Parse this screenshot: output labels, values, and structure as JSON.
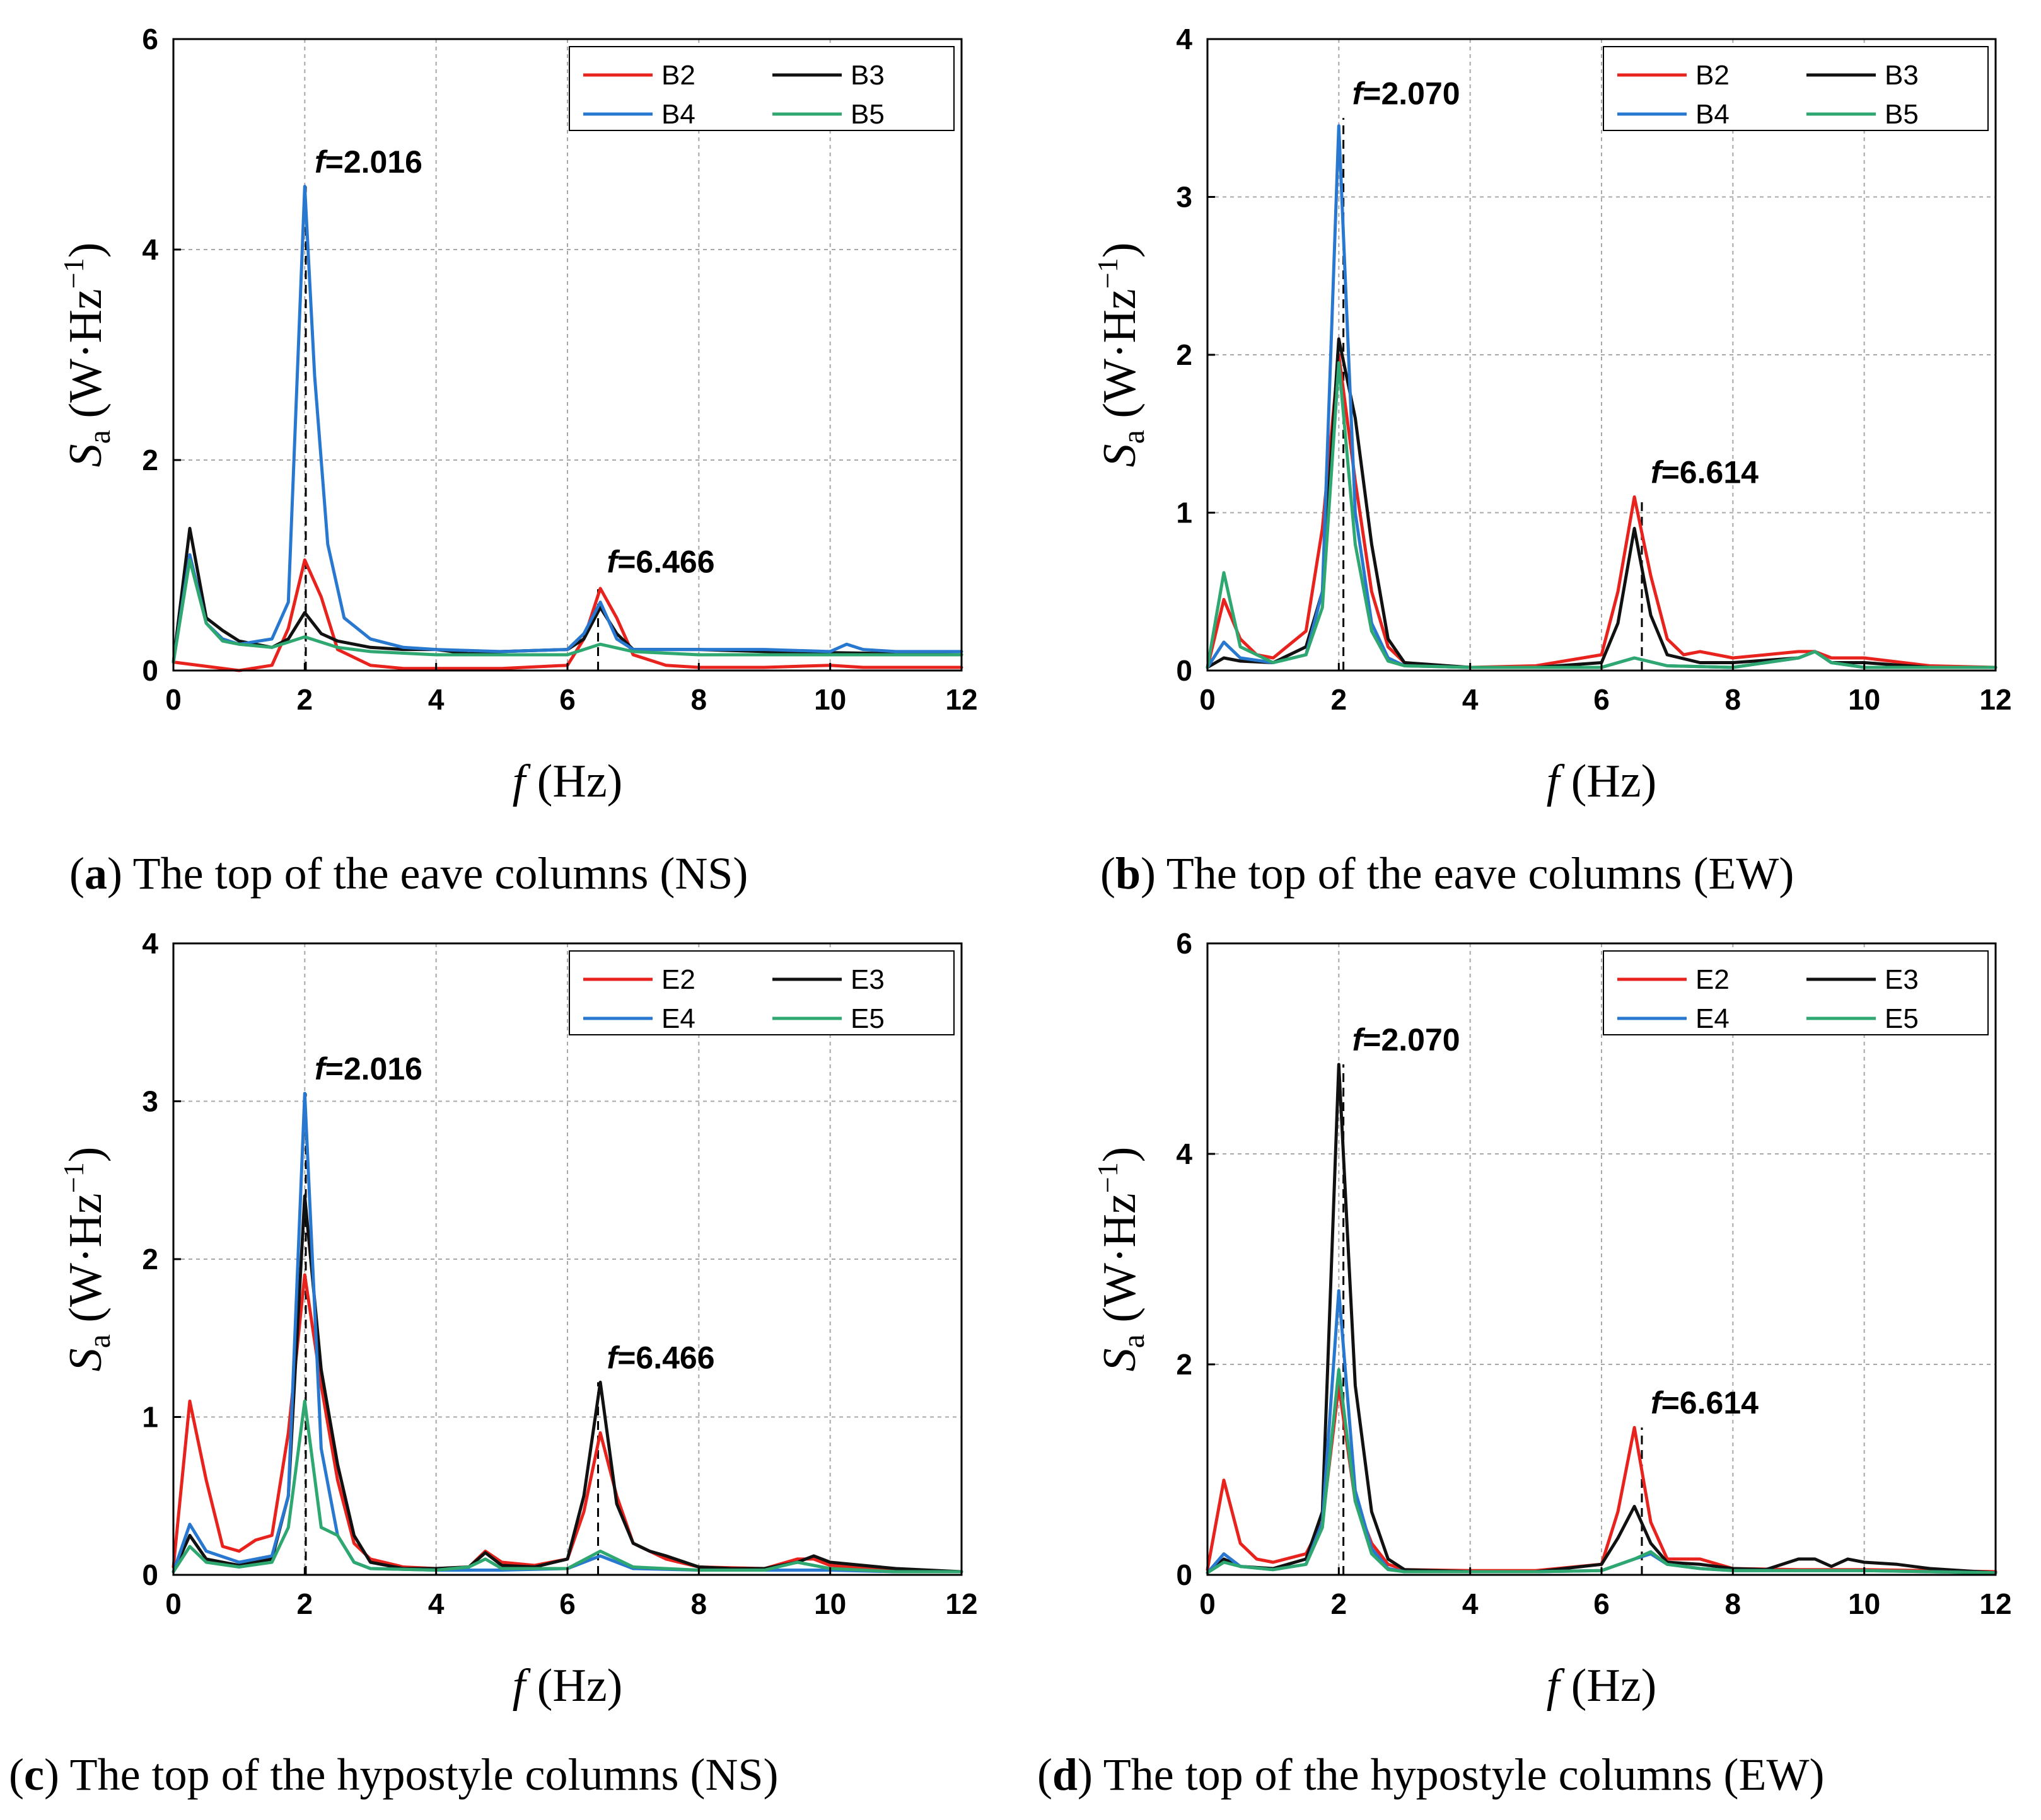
{
  "chart_data": [
    {
      "id": "a",
      "type": "line",
      "caption_letter": "a",
      "caption_text": ") The top of the eave columns (NS)",
      "xlabel": "(Hz)",
      "xlabel_symbol": "f",
      "ylabel": "S",
      "ylabel_sub": "a",
      "ylabel_unit": "(W·Hz",
      "ylabel_exp": "−1",
      "ylabel_close": ")",
      "xlim": [
        0,
        12
      ],
      "ylim": [
        0,
        6
      ],
      "xticks": [
        0,
        2,
        4,
        6,
        8,
        10,
        12
      ],
      "yticks": [
        0,
        2,
        4,
        6
      ],
      "grid": true,
      "legend_position": "top-right",
      "annotations": [
        {
          "x": 2.016,
          "peak": 4.6,
          "text": "=2.016"
        },
        {
          "x": 6.466,
          "peak": 0.8,
          "text": "=6.466"
        }
      ],
      "series": [
        {
          "name": "B2",
          "color": "#e8221c",
          "x": [
            0,
            1,
            1.5,
            1.75,
            2,
            2.25,
            2.5,
            3,
            3.5,
            4,
            5,
            6,
            6.25,
            6.5,
            6.75,
            7,
            7.5,
            8,
            9,
            10,
            10.5,
            11,
            12
          ],
          "y": [
            0.08,
            0.0,
            0.05,
            0.4,
            1.05,
            0.7,
            0.2,
            0.05,
            0.02,
            0.02,
            0.02,
            0.05,
            0.3,
            0.78,
            0.5,
            0.15,
            0.05,
            0.03,
            0.03,
            0.05,
            0.03,
            0.03,
            0.03
          ]
        },
        {
          "name": "B3",
          "color": "#111111",
          "x": [
            0,
            0.25,
            0.5,
            0.75,
            1,
            1.5,
            1.75,
            2,
            2.25,
            2.5,
            3,
            3.5,
            4,
            4.5,
            5,
            6,
            6.25,
            6.5,
            6.75,
            7,
            8,
            9,
            10,
            11,
            12
          ],
          "y": [
            0.08,
            1.35,
            0.5,
            0.38,
            0.28,
            0.22,
            0.3,
            0.55,
            0.35,
            0.28,
            0.22,
            0.2,
            0.2,
            0.16,
            0.18,
            0.2,
            0.3,
            0.6,
            0.35,
            0.2,
            0.2,
            0.18,
            0.17,
            0.16,
            0.15
          ]
        },
        {
          "name": "B4",
          "color": "#2878d0",
          "x": [
            0,
            0.25,
            0.5,
            0.75,
            1,
            1.5,
            1.75,
            2,
            2.15,
            2.35,
            2.6,
            3,
            3.5,
            4,
            5,
            6,
            6.25,
            6.5,
            6.75,
            7,
            8,
            9,
            10,
            10.25,
            10.5,
            11,
            12
          ],
          "y": [
            0.08,
            1.1,
            0.45,
            0.3,
            0.25,
            0.3,
            0.65,
            4.6,
            2.8,
            1.2,
            0.5,
            0.3,
            0.22,
            0.2,
            0.18,
            0.2,
            0.35,
            0.65,
            0.3,
            0.2,
            0.2,
            0.2,
            0.18,
            0.25,
            0.2,
            0.18,
            0.18
          ]
        },
        {
          "name": "B5",
          "color": "#2ea870",
          "x": [
            0,
            0.25,
            0.5,
            0.75,
            1,
            1.5,
            2,
            2.5,
            3,
            4,
            5,
            6,
            6.5,
            7,
            8,
            9,
            10,
            11,
            12
          ],
          "y": [
            0.08,
            1.05,
            0.45,
            0.28,
            0.25,
            0.22,
            0.32,
            0.22,
            0.18,
            0.15,
            0.15,
            0.15,
            0.25,
            0.18,
            0.15,
            0.15,
            0.15,
            0.15,
            0.15
          ]
        }
      ]
    },
    {
      "id": "b",
      "type": "line",
      "caption_letter": "b",
      "caption_text": ") The top of the eave columns (EW)",
      "xlabel": "(Hz)",
      "xlabel_symbol": "f",
      "ylabel": "S",
      "ylabel_sub": "a",
      "ylabel_unit": "(W·Hz",
      "ylabel_exp": "−1",
      "ylabel_close": ")",
      "xlim": [
        0,
        12
      ],
      "ylim": [
        0,
        4
      ],
      "xticks": [
        0,
        2,
        4,
        6,
        8,
        10,
        12
      ],
      "yticks": [
        0,
        1,
        2,
        3,
        4
      ],
      "grid": true,
      "legend_position": "top-right",
      "annotations": [
        {
          "x": 2.07,
          "peak": 3.5,
          "text": "=2.070"
        },
        {
          "x": 6.614,
          "peak": 1.1,
          "text": "=6.614"
        }
      ],
      "series": [
        {
          "name": "B2",
          "color": "#e8221c",
          "x": [
            0,
            0.25,
            0.5,
            0.75,
            1,
            1.5,
            1.75,
            2,
            2.25,
            2.5,
            2.75,
            3,
            3.5,
            4,
            5,
            6,
            6.25,
            6.5,
            6.75,
            7,
            7.25,
            7.5,
            8,
            8.5,
            9,
            9.25,
            9.5,
            10,
            11,
            12
          ],
          "y": [
            0.02,
            0.45,
            0.2,
            0.1,
            0.08,
            0.25,
            0.9,
            2.0,
            1.2,
            0.5,
            0.15,
            0.05,
            0.03,
            0.02,
            0.03,
            0.1,
            0.5,
            1.1,
            0.6,
            0.2,
            0.1,
            0.12,
            0.08,
            0.1,
            0.12,
            0.12,
            0.08,
            0.08,
            0.03,
            0.02
          ]
        },
        {
          "name": "B3",
          "color": "#111111",
          "x": [
            0,
            0.25,
            0.5,
            1,
            1.5,
            1.75,
            2,
            2.25,
            2.5,
            2.75,
            3,
            4,
            5,
            6,
            6.25,
            6.5,
            6.75,
            7,
            7.5,
            8,
            9,
            9.25,
            9.5,
            10,
            11,
            12
          ],
          "y": [
            0.02,
            0.08,
            0.06,
            0.05,
            0.15,
            0.5,
            2.1,
            1.6,
            0.8,
            0.2,
            0.05,
            0.02,
            0.02,
            0.05,
            0.3,
            0.9,
            0.35,
            0.1,
            0.05,
            0.05,
            0.08,
            0.12,
            0.05,
            0.05,
            0.02,
            0.02
          ]
        },
        {
          "name": "B4",
          "color": "#2878d0",
          "x": [
            0,
            0.25,
            0.5,
            1,
            1.5,
            1.75,
            2,
            2.25,
            2.5,
            2.75,
            3,
            4,
            5,
            6,
            6.5,
            7,
            8,
            9,
            9.25,
            9.5,
            10,
            11,
            12
          ],
          "y": [
            0.02,
            0.18,
            0.08,
            0.05,
            0.1,
            0.5,
            3.45,
            1.0,
            0.3,
            0.08,
            0.03,
            0.02,
            0.02,
            0.02,
            0.08,
            0.03,
            0.02,
            0.08,
            0.12,
            0.05,
            0.02,
            0.02,
            0.02
          ]
        },
        {
          "name": "B5",
          "color": "#2ea870",
          "x": [
            0,
            0.25,
            0.5,
            1,
            1.5,
            1.75,
            2,
            2.25,
            2.5,
            2.75,
            3,
            4,
            5,
            6,
            6.5,
            7,
            8,
            9,
            9.25,
            9.5,
            10,
            11,
            12
          ],
          "y": [
            0.02,
            0.62,
            0.15,
            0.05,
            0.1,
            0.4,
            1.95,
            0.8,
            0.25,
            0.06,
            0.03,
            0.02,
            0.02,
            0.02,
            0.08,
            0.03,
            0.02,
            0.08,
            0.12,
            0.05,
            0.02,
            0.02,
            0.02
          ]
        }
      ]
    },
    {
      "id": "c",
      "type": "line",
      "caption_letter": "c",
      "caption_text": ") The top of the hypostyle columns (NS)",
      "xlabel": "(Hz)",
      "xlabel_symbol": "f",
      "ylabel": "S",
      "ylabel_sub": "a",
      "ylabel_unit": "(W·Hz",
      "ylabel_exp": "−1",
      "ylabel_close": ")",
      "xlim": [
        0,
        12
      ],
      "ylim": [
        0,
        4
      ],
      "xticks": [
        0,
        2,
        4,
        6,
        8,
        10,
        12
      ],
      "yticks": [
        0,
        1,
        2,
        3,
        4
      ],
      "grid": true,
      "legend_position": "top-right",
      "annotations": [
        {
          "x": 2.016,
          "peak": 3.05,
          "text": "=2.016"
        },
        {
          "x": 6.466,
          "peak": 1.22,
          "text": "=6.466"
        }
      ],
      "series": [
        {
          "name": "E2",
          "color": "#e8221c",
          "x": [
            0,
            0.25,
            0.5,
            0.75,
            1,
            1.25,
            1.5,
            1.75,
            2,
            2.25,
            2.5,
            2.75,
            3,
            3.5,
            4,
            4.5,
            4.75,
            5,
            5.5,
            6,
            6.25,
            6.5,
            6.75,
            7,
            7.5,
            8,
            9,
            9.5,
            9.75,
            10,
            11,
            12
          ],
          "y": [
            0.05,
            1.1,
            0.6,
            0.18,
            0.15,
            0.22,
            0.25,
            0.9,
            1.9,
            1.2,
            0.6,
            0.2,
            0.1,
            0.05,
            0.04,
            0.05,
            0.15,
            0.08,
            0.06,
            0.1,
            0.4,
            0.9,
            0.5,
            0.2,
            0.1,
            0.05,
            0.04,
            0.1,
            0.1,
            0.06,
            0.03,
            0.02
          ]
        },
        {
          "name": "E3",
          "color": "#111111",
          "x": [
            0,
            0.25,
            0.5,
            1,
            1.5,
            1.75,
            2,
            2.25,
            2.5,
            2.75,
            3,
            3.5,
            4,
            4.5,
            4.75,
            5,
            5.5,
            6,
            6.25,
            6.5,
            6.75,
            7,
            7.25,
            7.5,
            8,
            8.5,
            9,
            9.5,
            9.75,
            10,
            11,
            12
          ],
          "y": [
            0.02,
            0.25,
            0.1,
            0.06,
            0.1,
            0.5,
            2.4,
            1.3,
            0.7,
            0.25,
            0.08,
            0.04,
            0.04,
            0.05,
            0.14,
            0.06,
            0.05,
            0.1,
            0.5,
            1.22,
            0.45,
            0.2,
            0.15,
            0.12,
            0.05,
            0.04,
            0.04,
            0.08,
            0.12,
            0.08,
            0.04,
            0.02
          ]
        },
        {
          "name": "E4",
          "color": "#2878d0",
          "x": [
            0,
            0.25,
            0.5,
            1,
            1.5,
            1.75,
            2,
            2.25,
            2.5,
            2.75,
            3,
            4,
            5,
            6,
            6.5,
            7,
            8,
            9,
            10,
            11,
            12
          ],
          "y": [
            0.02,
            0.32,
            0.15,
            0.08,
            0.12,
            0.5,
            3.05,
            0.8,
            0.25,
            0.08,
            0.04,
            0.03,
            0.03,
            0.04,
            0.12,
            0.04,
            0.03,
            0.03,
            0.03,
            0.02,
            0.02
          ]
        },
        {
          "name": "E5",
          "color": "#2ea870",
          "x": [
            0,
            0.25,
            0.5,
            1,
            1.5,
            1.75,
            2,
            2.25,
            2.5,
            2.75,
            3,
            4,
            4.5,
            4.75,
            5,
            6,
            6.5,
            7,
            8,
            9,
            9.5,
            10,
            11,
            12
          ],
          "y": [
            0.02,
            0.18,
            0.08,
            0.05,
            0.08,
            0.3,
            1.1,
            0.3,
            0.25,
            0.08,
            0.04,
            0.03,
            0.05,
            0.1,
            0.04,
            0.04,
            0.15,
            0.05,
            0.03,
            0.03,
            0.08,
            0.04,
            0.02,
            0.02
          ]
        }
      ]
    },
    {
      "id": "d",
      "type": "line",
      "caption_letter": "d",
      "caption_text": ") The top of the hypostyle columns (EW)",
      "xlabel": "(Hz)",
      "xlabel_symbol": "f",
      "ylabel": "S",
      "ylabel_sub": "a",
      "ylabel_unit": "(W·Hz",
      "ylabel_exp": "−1",
      "ylabel_close": ")",
      "xlim": [
        0,
        12
      ],
      "ylim": [
        0,
        6
      ],
      "xticks": [
        0,
        2,
        4,
        6,
        8,
        10,
        12
      ],
      "yticks": [
        0,
        2,
        4,
        6
      ],
      "grid": true,
      "legend_position": "top-right",
      "annotations": [
        {
          "x": 2.07,
          "peak": 4.85,
          "text": "=2.070"
        },
        {
          "x": 6.614,
          "peak": 1.4,
          "text": "=6.614"
        }
      ],
      "series": [
        {
          "name": "E2",
          "color": "#e8221c",
          "x": [
            0,
            0.25,
            0.5,
            0.75,
            1,
            1.5,
            1.75,
            2,
            2.25,
            2.5,
            2.75,
            3,
            4,
            5,
            6,
            6.25,
            6.5,
            6.75,
            7,
            7.5,
            8,
            9,
            10,
            11,
            12
          ],
          "y": [
            0.05,
            0.9,
            0.3,
            0.15,
            0.12,
            0.2,
            0.5,
            1.8,
            0.7,
            0.3,
            0.1,
            0.05,
            0.04,
            0.04,
            0.1,
            0.6,
            1.4,
            0.5,
            0.15,
            0.15,
            0.06,
            0.05,
            0.05,
            0.04,
            0.03
          ]
        },
        {
          "name": "E3",
          "color": "#111111",
          "x": [
            0,
            0.25,
            0.5,
            1,
            1.5,
            1.75,
            2,
            2.25,
            2.5,
            2.75,
            3,
            4,
            5,
            6,
            6.25,
            6.5,
            6.75,
            7,
            7.5,
            8,
            8.5,
            9,
            9.25,
            9.5,
            9.75,
            10,
            10.5,
            11,
            12
          ],
          "y": [
            0.02,
            0.15,
            0.08,
            0.06,
            0.15,
            0.6,
            4.85,
            1.8,
            0.6,
            0.15,
            0.05,
            0.03,
            0.03,
            0.1,
            0.35,
            0.65,
            0.3,
            0.12,
            0.1,
            0.06,
            0.05,
            0.15,
            0.15,
            0.08,
            0.15,
            0.12,
            0.1,
            0.06,
            0.02
          ]
        },
        {
          "name": "E4",
          "color": "#2878d0",
          "x": [
            0,
            0.25,
            0.5,
            1,
            1.5,
            1.75,
            2,
            2.25,
            2.5,
            2.75,
            3,
            4,
            5,
            6,
            6.5,
            6.75,
            7,
            7.5,
            8,
            9,
            10,
            11,
            12
          ],
          "y": [
            0.02,
            0.2,
            0.08,
            0.05,
            0.1,
            0.5,
            2.7,
            0.8,
            0.25,
            0.06,
            0.03,
            0.03,
            0.03,
            0.04,
            0.15,
            0.2,
            0.1,
            0.06,
            0.04,
            0.04,
            0.04,
            0.03,
            0.02
          ]
        },
        {
          "name": "E5",
          "color": "#2ea870",
          "x": [
            0,
            0.25,
            0.5,
            1,
            1.5,
            1.75,
            2,
            2.25,
            2.5,
            2.75,
            3,
            4,
            5,
            6,
            6.5,
            6.75,
            7,
            7.5,
            8,
            9,
            10,
            11,
            12
          ],
          "y": [
            0.02,
            0.12,
            0.08,
            0.05,
            0.1,
            0.45,
            1.95,
            0.7,
            0.2,
            0.05,
            0.03,
            0.03,
            0.03,
            0.04,
            0.15,
            0.22,
            0.1,
            0.06,
            0.04,
            0.04,
            0.04,
            0.03,
            0.02
          ]
        }
      ]
    }
  ]
}
